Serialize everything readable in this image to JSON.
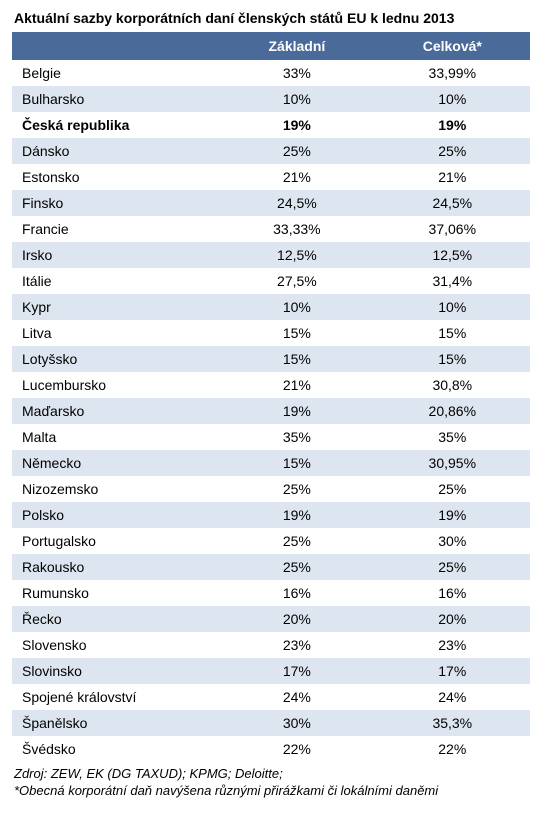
{
  "title": "Aktuální sazby korporátních daní členských států EU k lednu 2013",
  "table": {
    "headers": {
      "country": "",
      "base": "Základní",
      "total": "Celková*"
    },
    "header_bg": "#4a6a99",
    "header_fg": "#ffffff",
    "row_even_bg": "#ffffff",
    "row_odd_bg": "#dde6f0",
    "font_size": 14,
    "rows": [
      {
        "country": "Belgie",
        "base": "33%",
        "total": "33,99%",
        "bold": false
      },
      {
        "country": "Bulharsko",
        "base": "10%",
        "total": "10%",
        "bold": false
      },
      {
        "country": "Česká republika",
        "base": "19%",
        "total": "19%",
        "bold": true
      },
      {
        "country": "Dánsko",
        "base": "25%",
        "total": "25%",
        "bold": false
      },
      {
        "country": "Estonsko",
        "base": "21%",
        "total": "21%",
        "bold": false
      },
      {
        "country": "Finsko",
        "base": "24,5%",
        "total": "24,5%",
        "bold": false
      },
      {
        "country": "Francie",
        "base": "33,33%",
        "total": "37,06%",
        "bold": false
      },
      {
        "country": "Irsko",
        "base": "12,5%",
        "total": "12,5%",
        "bold": false
      },
      {
        "country": "Itálie",
        "base": "27,5%",
        "total": "31,4%",
        "bold": false
      },
      {
        "country": "Kypr",
        "base": "10%",
        "total": "10%",
        "bold": false
      },
      {
        "country": "Litva",
        "base": "15%",
        "total": "15%",
        "bold": false
      },
      {
        "country": "Lotyšsko",
        "base": "15%",
        "total": "15%",
        "bold": false
      },
      {
        "country": "Lucembursko",
        "base": "21%",
        "total": "30,8%",
        "bold": false
      },
      {
        "country": "Maďarsko",
        "base": "19%",
        "total": "20,86%",
        "bold": false
      },
      {
        "country": "Malta",
        "base": "35%",
        "total": "35%",
        "bold": false
      },
      {
        "country": "Německo",
        "base": "15%",
        "total": "30,95%",
        "bold": false
      },
      {
        "country": "Nizozemsko",
        "base": "25%",
        "total": "25%",
        "bold": false
      },
      {
        "country": "Polsko",
        "base": "19%",
        "total": "19%",
        "bold": false
      },
      {
        "country": "Portugalsko",
        "base": "25%",
        "total": "30%",
        "bold": false
      },
      {
        "country": "Rakousko",
        "base": "25%",
        "total": "25%",
        "bold": false
      },
      {
        "country": "Rumunsko",
        "base": "16%",
        "total": "16%",
        "bold": false
      },
      {
        "country": "Řecko",
        "base": "20%",
        "total": "20%",
        "bold": false
      },
      {
        "country": "Slovensko",
        "base": "23%",
        "total": "23%",
        "bold": false
      },
      {
        "country": "Slovinsko",
        "base": "17%",
        "total": "17%",
        "bold": false
      },
      {
        "country": "Spojené království",
        "base": "24%",
        "total": "24%",
        "bold": false
      },
      {
        "country": "Španělsko",
        "base": "30%",
        "total": "35,3%",
        "bold": false
      },
      {
        "country": "Švédsko",
        "base": "22%",
        "total": "22%",
        "bold": false
      }
    ]
  },
  "footer": {
    "line1": "Zdroj: ZEW, EK (DG TAXUD); KPMG; Deloitte;",
    "line2": "*Obecná korporátní daň navýšena různými přirážkami či lokálními daněmi"
  }
}
